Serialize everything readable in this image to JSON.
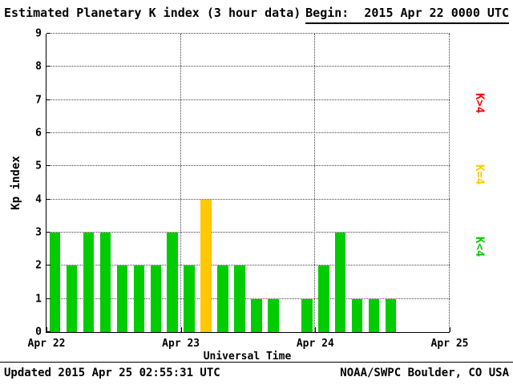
{
  "header": {
    "title": "Estimated Planetary K index (3 hour data)",
    "begin_label": "Begin:",
    "begin_value": "2015 Apr 22 0000 UTC"
  },
  "chart_data": {
    "type": "bar",
    "title": "Estimated Planetary K index (3 hour data)",
    "begin": "2015 Apr 22 0000 UTC",
    "xlabel": "Universal Time",
    "ylabel": "Kp index",
    "ylim": [
      0,
      9
    ],
    "y_ticks": [
      0,
      1,
      2,
      3,
      4,
      5,
      6,
      7,
      8,
      9
    ],
    "x_tick_labels": [
      "Apr 22",
      "Apr 23",
      "Apr 24",
      "Apr 25"
    ],
    "bar_interval_hours": 3,
    "bars_per_day": 8,
    "grid": "dotted horizontal lines at each Kp unit, dotted vertical lines at day boundaries",
    "values": [
      3,
      2,
      3,
      3,
      2,
      2,
      2,
      3,
      2,
      4,
      2,
      2,
      1,
      1,
      0,
      1,
      2,
      3,
      1,
      1,
      1,
      null,
      null,
      null
    ],
    "colors": {
      "low": "#00CC00",
      "mid": "#FFC800",
      "high": "#FF0000"
    },
    "color_rule": "green for K<4, yellow for K=4, red for K>4"
  },
  "legend": [
    {
      "label": "K>4",
      "color": "#FF0000"
    },
    {
      "label": "K=4",
      "color": "#FFC800"
    },
    {
      "label": "K<4",
      "color": "#00CC00"
    }
  ],
  "footer": {
    "updated": "Updated 2015 Apr 25 02:55:31 UTC",
    "source": "NOAA/SWPC Boulder, CO USA"
  }
}
